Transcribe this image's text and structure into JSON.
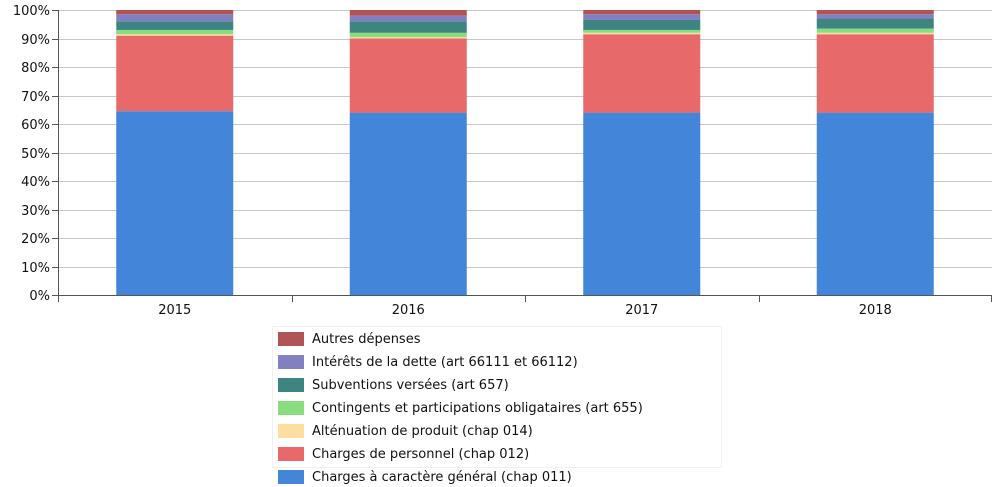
{
  "chart_data": {
    "type": "bar",
    "stacked": true,
    "percent": true,
    "categories": [
      "2015",
      "2016",
      "2017",
      "2018"
    ],
    "ylim": [
      0,
      100
    ],
    "yticks": [
      "0%",
      "10%",
      "20%",
      "30%",
      "40%",
      "50%",
      "60%",
      "70%",
      "80%",
      "90%",
      "100%"
    ],
    "grid": true,
    "legend_position": "bottom",
    "series": [
      {
        "name": "Charges à caractère général (chap 011)",
        "color": "#4285d9",
        "values": [
          64.5,
          64.0,
          64.0,
          64.0
        ]
      },
      {
        "name": "Charges de personnel (chap 012)",
        "color": "#e8696a",
        "values": [
          26.5,
          26.0,
          27.5,
          27.5
        ]
      },
      {
        "name": "Alténuation de produit (chap 014)",
        "color": "#fddea0",
        "values": [
          0.5,
          0.5,
          0.5,
          0.5
        ]
      },
      {
        "name": "Contingents et participations obligataires (art 655)",
        "color": "#88de7e",
        "values": [
          1.5,
          1.5,
          1.0,
          1.5
        ]
      },
      {
        "name": "Subventions versées (art 657)",
        "color": "#3e8582",
        "values": [
          3.0,
          4.0,
          3.5,
          3.5
        ]
      },
      {
        "name": "Intérêts de la dette (art 66111 et 66112)",
        "color": "#8380c1",
        "values": [
          2.5,
          2.0,
          2.0,
          1.5
        ]
      },
      {
        "name": "Autres dépenses",
        "color": "#b05455",
        "values": [
          1.5,
          2.0,
          1.5,
          1.5
        ]
      }
    ],
    "legend_order": [
      6,
      5,
      4,
      3,
      2,
      1,
      0
    ]
  }
}
